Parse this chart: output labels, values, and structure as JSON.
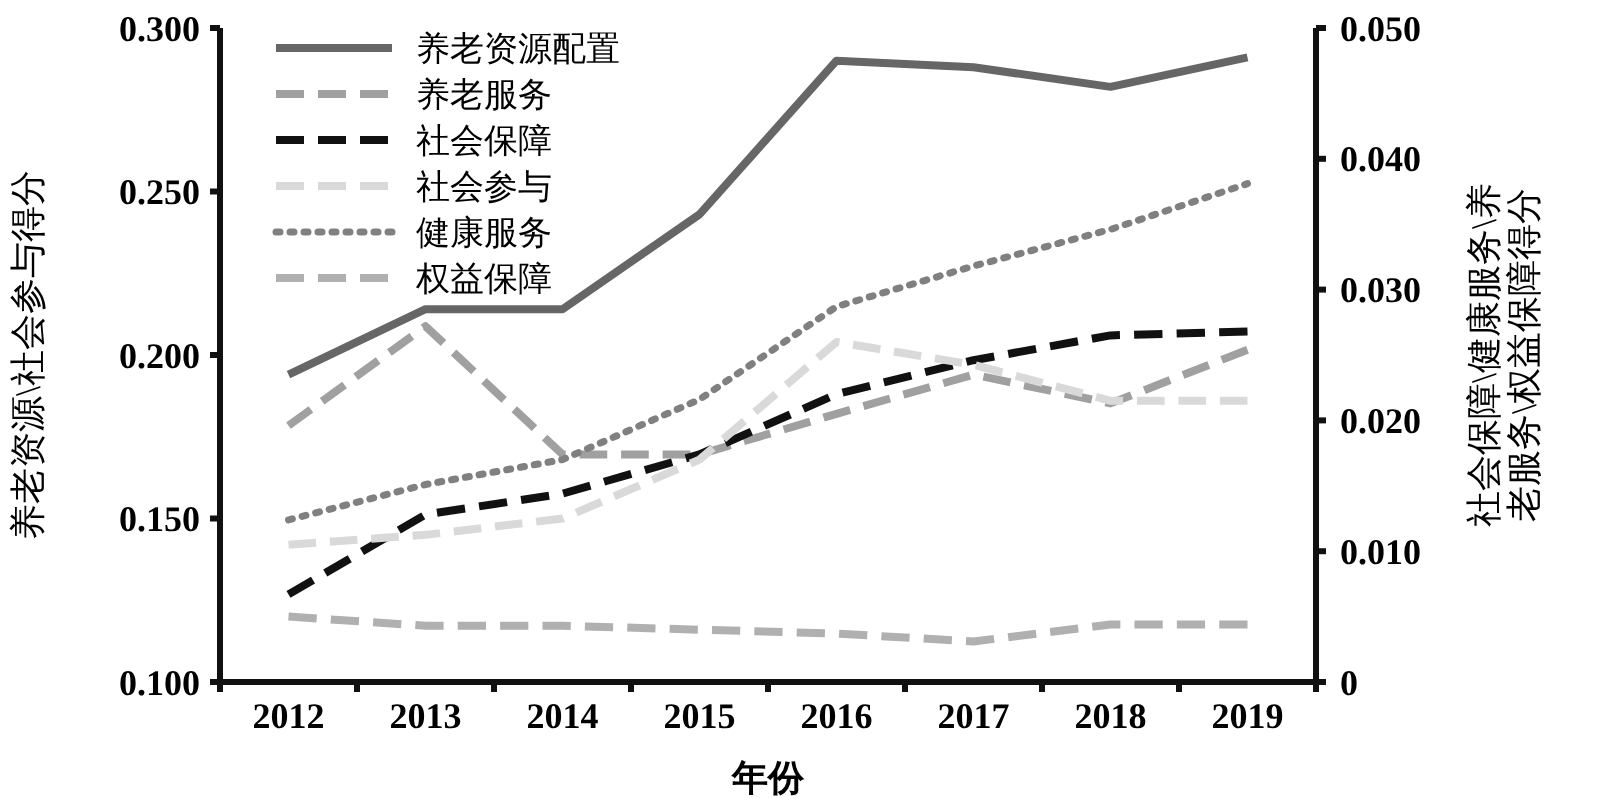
{
  "chart_data": {
    "type": "line",
    "xlabel": "年份",
    "ylabel": "养老资源\\社会参与得分",
    "y2label": "社会保障\\健康服务\\养老服务\\权益保障得分",
    "categories": [
      "2012",
      "2013",
      "2014",
      "2015",
      "2016",
      "2017",
      "2018",
      "2019"
    ],
    "ylim": [
      0.1,
      0.3
    ],
    "yticks": [
      {
        "value": 0.1,
        "label": "0.100"
      },
      {
        "value": 0.15,
        "label": "0.150"
      },
      {
        "value": 0.2,
        "label": "0.200"
      },
      {
        "value": 0.25,
        "label": "0.250"
      },
      {
        "value": 0.3,
        "label": "0.300"
      }
    ],
    "y2lim": [
      0,
      0.05
    ],
    "y2ticks": [
      {
        "value": 0,
        "label": "0"
      },
      {
        "value": 0.01,
        "label": "0.010"
      },
      {
        "value": 0.02,
        "label": "0.020"
      },
      {
        "value": 0.03,
        "label": "0.030"
      },
      {
        "value": 0.04,
        "label": "0.040"
      },
      {
        "value": 0.05,
        "label": "0.050"
      }
    ],
    "grid": false,
    "legend": "top left",
    "marker": "none",
    "series": [
      {
        "name": "养老资源配置",
        "color": "#666666",
        "line_style": "solid",
        "values": [
          0.194,
          0.214,
          0.214,
          0.243,
          0.29,
          0.288,
          0.282,
          0.291
        ]
      },
      {
        "name": "养老服务",
        "color": "#a0a0a0",
        "line_style": "dashed",
        "axis": "y2",
        "values": [
          0.0196,
          0.0272,
          0.0174,
          0.0174,
          0.0205,
          0.0235,
          0.0213,
          0.0254
        ]
      },
      {
        "name": "社会保障",
        "color": "#111111",
        "line_style": "dashed",
        "axis": "y2",
        "values": [
          0.0067,
          0.0128,
          0.0144,
          0.0174,
          0.022,
          0.0246,
          0.0265,
          0.0268
        ]
      },
      {
        "name": "社会参与",
        "color": "#d9d9d9",
        "line_style": "dashed",
        "values": [
          0.142,
          0.145,
          0.15,
          0.168,
          0.204,
          0.197,
          0.186,
          0.186
        ]
      },
      {
        "name": "健康服务",
        "color": "#808080",
        "line_style": "dotted",
        "axis": "y2",
        "values": [
          0.0124,
          0.0151,
          0.017,
          0.0216,
          0.0287,
          0.0318,
          0.0346,
          0.0381
        ]
      },
      {
        "name": "权益保障",
        "color": "#b0b0b0",
        "line_style": "dashed",
        "axis": "y2",
        "values": [
          0.005,
          0.0043,
          0.0043,
          0.004,
          0.0037,
          0.0031,
          0.0044,
          0.0044
        ]
      }
    ]
  }
}
